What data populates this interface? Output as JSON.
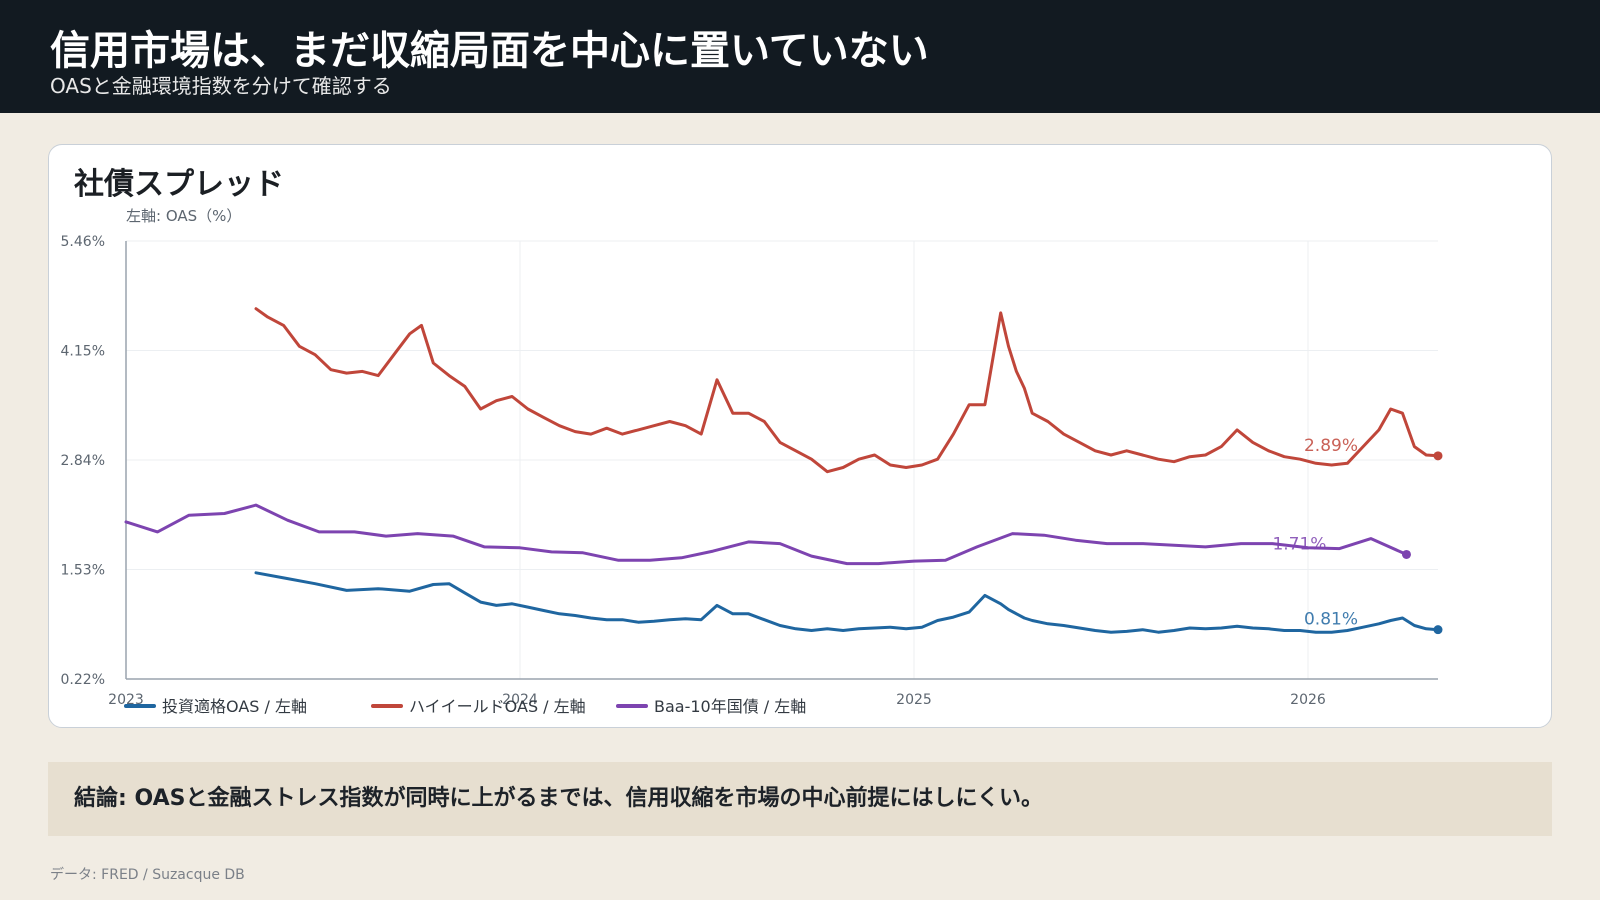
{
  "header": {
    "title": "信用市場は、まだ収縮局面を中心に置いていない",
    "subtitle": "OASと金融環境指数を分けて確認する"
  },
  "card": {
    "title": "社債スプレッド",
    "axis_title": "左軸: OAS（%）"
  },
  "conclusion": "結論: OASと金融ストレス指数が同時に上がるまでは、信用収縮を市場の中心前提にはしにくい。",
  "source": "データ: FRED / Suzacque DB",
  "colors": {
    "hy": "#c0463a",
    "ig": "#1f66a0",
    "baa": "#7d44b0",
    "header_bg": "#121a21",
    "page_bg": "#f1ece3",
    "conclusion_bg": "#e7dfd0"
  },
  "chart_data": {
    "type": "line",
    "title": "社債スプレッド",
    "ylabel": "左軸: OAS（%）",
    "xlabel": "",
    "xlim": [
      2023.0,
      2026.33
    ],
    "ylim": [
      0.22,
      5.46
    ],
    "y_ticks": [
      "0.22%",
      "1.53%",
      "2.84%",
      "4.15%",
      "5.46%"
    ],
    "x_ticks": [
      "2023",
      "2024",
      "2025",
      "2026"
    ],
    "legend_position": "bottom-left",
    "grid": true,
    "series": [
      {
        "name": "ハイイールドOAS / 左軸",
        "color": "#c0463a",
        "end_label": "2.89%",
        "x": [
          2023.33,
          2023.36,
          2023.4,
          2023.44,
          2023.48,
          2023.52,
          2023.56,
          2023.6,
          2023.64,
          2023.68,
          2023.72,
          2023.75,
          2023.78,
          2023.82,
          2023.86,
          2023.9,
          2023.94,
          2023.98,
          2024.02,
          2024.06,
          2024.1,
          2024.14,
          2024.18,
          2024.22,
          2024.26,
          2024.3,
          2024.34,
          2024.38,
          2024.42,
          2024.46,
          2024.5,
          2024.54,
          2024.58,
          2024.62,
          2024.66,
          2024.7,
          2024.74,
          2024.78,
          2024.82,
          2024.86,
          2024.9,
          2024.94,
          2024.98,
          2025.02,
          2025.06,
          2025.1,
          2025.14,
          2025.18,
          2025.22,
          2025.24,
          2025.26,
          2025.28,
          2025.3,
          2025.34,
          2025.38,
          2025.42,
          2025.46,
          2025.5,
          2025.54,
          2025.58,
          2025.62,
          2025.66,
          2025.7,
          2025.74,
          2025.78,
          2025.82,
          2025.86,
          2025.9,
          2025.94,
          2025.98,
          2026.02,
          2026.06,
          2026.1,
          2026.14,
          2026.18,
          2026.21,
          2026.24,
          2026.27,
          2026.3,
          2026.33
        ],
        "y": [
          4.65,
          4.55,
          4.45,
          4.2,
          4.1,
          3.92,
          3.88,
          3.9,
          3.85,
          4.1,
          4.35,
          4.45,
          4.0,
          3.85,
          3.72,
          3.45,
          3.55,
          3.6,
          3.45,
          3.35,
          3.25,
          3.18,
          3.15,
          3.22,
          3.15,
          3.2,
          3.25,
          3.3,
          3.25,
          3.15,
          3.8,
          3.4,
          3.4,
          3.3,
          3.05,
          2.95,
          2.85,
          2.7,
          2.75,
          2.85,
          2.9,
          2.78,
          2.75,
          2.78,
          2.85,
          3.15,
          3.5,
          3.5,
          4.6,
          4.2,
          3.9,
          3.7,
          3.4,
          3.3,
          3.15,
          3.05,
          2.95,
          2.9,
          2.95,
          2.9,
          2.85,
          2.82,
          2.88,
          2.9,
          3.0,
          3.2,
          3.05,
          2.95,
          2.88,
          2.85,
          2.8,
          2.78,
          2.8,
          3.0,
          3.2,
          3.45,
          3.4,
          3.0,
          2.9,
          2.89
        ]
      },
      {
        "name": "Baa-10年国債 / 左軸",
        "color": "#7d44b0",
        "end_label": "1.71%",
        "x": [
          2023.0,
          2023.08,
          2023.16,
          2023.25,
          2023.33,
          2023.41,
          2023.49,
          2023.58,
          2023.66,
          2023.74,
          2023.83,
          2023.91,
          2024.0,
          2024.08,
          2024.16,
          2024.25,
          2024.33,
          2024.41,
          2024.49,
          2024.58,
          2024.66,
          2024.74,
          2024.83,
          2024.91,
          2025.0,
          2025.08,
          2025.16,
          2025.25,
          2025.33,
          2025.41,
          2025.49,
          2025.58,
          2025.66,
          2025.74,
          2025.83,
          2025.91,
          2026.0,
          2026.08,
          2026.16,
          2026.25
        ],
        "y": [
          2.1,
          1.98,
          2.18,
          2.2,
          2.3,
          2.12,
          1.98,
          1.98,
          1.93,
          1.96,
          1.93,
          1.8,
          1.79,
          1.74,
          1.73,
          1.64,
          1.64,
          1.67,
          1.75,
          1.86,
          1.84,
          1.69,
          1.6,
          1.6,
          1.63,
          1.64,
          1.8,
          1.96,
          1.94,
          1.88,
          1.84,
          1.84,
          1.82,
          1.8,
          1.84,
          1.84,
          1.79,
          1.78,
          1.9,
          1.71
        ]
      },
      {
        "name": "投資適格OAS / 左軸",
        "color": "#1f66a0",
        "end_label": "0.81%",
        "x": [
          2023.33,
          2023.4,
          2023.48,
          2023.56,
          2023.64,
          2023.72,
          2023.78,
          2023.82,
          2023.86,
          2023.9,
          2023.94,
          2023.98,
          2024.02,
          2024.06,
          2024.1,
          2024.14,
          2024.18,
          2024.22,
          2024.26,
          2024.3,
          2024.34,
          2024.38,
          2024.42,
          2024.46,
          2024.5,
          2024.54,
          2024.58,
          2024.62,
          2024.66,
          2024.7,
          2024.74,
          2024.78,
          2024.82,
          2024.86,
          2024.9,
          2024.94,
          2024.98,
          2025.02,
          2025.06,
          2025.1,
          2025.14,
          2025.18,
          2025.22,
          2025.24,
          2025.26,
          2025.28,
          2025.3,
          2025.34,
          2025.38,
          2025.42,
          2025.46,
          2025.5,
          2025.54,
          2025.58,
          2025.62,
          2025.66,
          2025.7,
          2025.74,
          2025.78,
          2025.82,
          2025.86,
          2025.9,
          2025.94,
          2025.98,
          2026.02,
          2026.06,
          2026.1,
          2026.14,
          2026.18,
          2026.21,
          2026.24,
          2026.27,
          2026.3,
          2026.33
        ],
        "y": [
          1.49,
          1.43,
          1.36,
          1.28,
          1.3,
          1.27,
          1.35,
          1.36,
          1.25,
          1.14,
          1.1,
          1.12,
          1.08,
          1.04,
          1.0,
          0.98,
          0.95,
          0.93,
          0.93,
          0.9,
          0.91,
          0.93,
          0.94,
          0.93,
          1.1,
          1.0,
          1.0,
          0.93,
          0.86,
          0.82,
          0.8,
          0.82,
          0.8,
          0.82,
          0.83,
          0.84,
          0.82,
          0.84,
          0.92,
          0.96,
          1.02,
          1.22,
          1.12,
          1.05,
          1.0,
          0.95,
          0.92,
          0.88,
          0.86,
          0.83,
          0.8,
          0.78,
          0.79,
          0.81,
          0.78,
          0.8,
          0.83,
          0.82,
          0.83,
          0.85,
          0.83,
          0.82,
          0.8,
          0.8,
          0.78,
          0.78,
          0.8,
          0.84,
          0.88,
          0.92,
          0.95,
          0.86,
          0.82,
          0.81
        ]
      }
    ]
  }
}
